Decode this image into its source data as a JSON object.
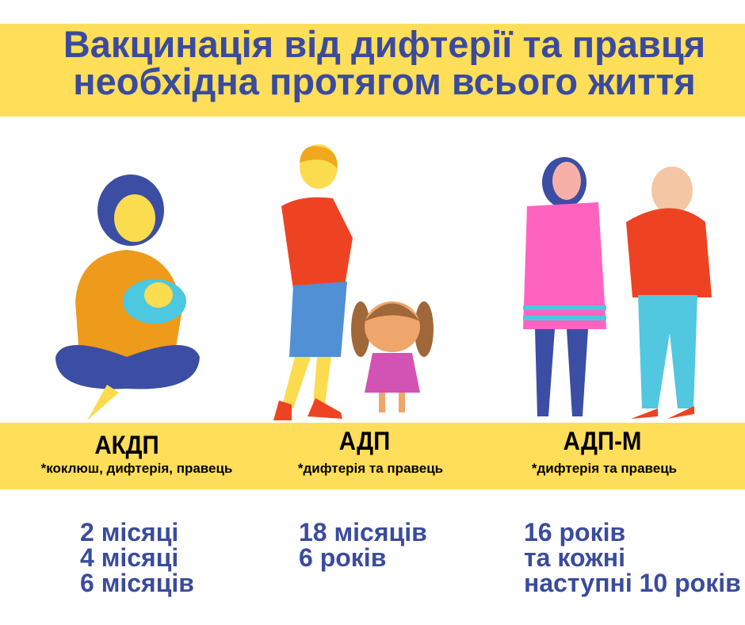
{
  "title": {
    "line1": "Вакцинація від дифтерії та правця",
    "line2": "необхідна протягом всього життя"
  },
  "columns": [
    {
      "vaccine": "АКДП",
      "note": "*коклюш, дифтерія, правець",
      "schedule": [
        "2 місяці",
        "4 місяці",
        "6 місяців"
      ]
    },
    {
      "vaccine": "АДП",
      "note": "*дифтерія та правець",
      "schedule": [
        "18 місяців",
        "6 років"
      ]
    },
    {
      "vaccine": "АДП-М",
      "note": "*дифтерія та правець",
      "schedule": [
        "16 років",
        "та кожні",
        "наступні 10 років"
      ]
    }
  ],
  "colors": {
    "banner": "#FFDE59",
    "title": "#3A4B9E"
  }
}
